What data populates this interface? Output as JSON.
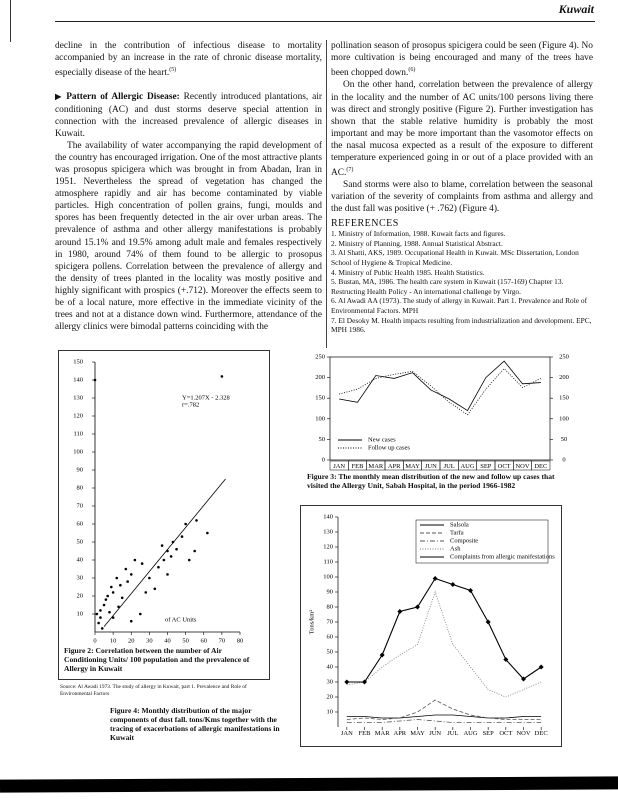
{
  "header": {
    "section": "Kuwait"
  },
  "left_column": {
    "paragraphs": [
      {
        "text": "decline in the contribution of infectious disease to mortality accompanied by an increase in the rate of chronic disease mortality, especially disease of the heart.",
        "note": "(5)"
      },
      {
        "heading": "Pattern of Allergic Disease:",
        "text": "Recently introduced plantations, air conditioning (AC) and dust storms deserve special attention in connection with the increased prevalence of allergic diseases in Kuwait."
      },
      {
        "text": "The availability of water accompanying the rapid development of the country has encouraged irrigation. One of the most attractive plants was prosopus spicigera which was brought in from Abadan, Iran in 1951. Nevertheless the spread of vegetation has changed the atmosphere rapidly and air has become contaminated by viable particles. High concentration of pollen grains, fungi, moulds and spores has been frequently detected in the air over urban areas. The prevalence of asthma and other allergy manifestations is probably around 15.1% and 19.5% among adult male and females respectively in 1980, around 74% of them found to be allergic to prosopus spicigera pollens. Correlation between the prevalence of allergy and the density of trees planted in the locality was mostly positive and highly significant with prospics (+.712). Moreover the effects seem to be of a local nature, more effective in the immediate vicinity of the trees and not at a distance down wind. Furthermore, attendance of the allergy clinics were bimodal patterns coinciding with the"
      }
    ]
  },
  "right_column": {
    "paragraphs": [
      {
        "text": "pollination season of prosopus spicigera could be seen (Figure 4). No more cultivation is being encouraged and many of the trees have been chopped down.",
        "note": "(6)"
      },
      {
        "text": "On the other hand, correlation between the prevalence of allergy in the locality and the number of AC units/100 persons living there was direct and strongly positive (Figure 2). Further investigation has shown that the stable relative humidity is probably the most important and may be more important than the vasomotor effects on the nasal mucosa expected as a result of the exposure to different temperature experienced going in or out of a place provided with an AC.",
        "note": "(7)"
      },
      {
        "text": "Sand storms were also to blame, correlation between the seasonal variation of the severity of complaints from asthma and allergy and the dust fall was positive (+ .762) (Figure 4)."
      }
    ],
    "references": {
      "title": "REFERENCES",
      "items": [
        "1. Ministry of Information, 1988. Kuwait facts and figures.",
        "2. Ministry of Planning, 1988. Annual Statistical Abstract.",
        "3. Al Shatti, AKS, 1989. Occupational Health in Kuwait. MSc Dissertation, London School of Hygiene & Tropical Medicine.",
        "4. Ministry of Public Health 1985. Health Statistics.",
        "5. Bustan, MA, 1986. The health care system in Kuwait (157-169) Chapter 13. Restructing Health Policy - An international challenge by Virgo.",
        "6. Al Awadi AA (1973). The study of allergy in Kuwait. Part 1. Prevalence and Role of Environmental Factors. MPH",
        "7. El Desoky M. Health impacts resulting from industrialization and development. EPC, MPH 1986."
      ]
    }
  },
  "chart_data": [
    {
      "type": "scatter",
      "title": "Figure 2: Correlation between the number of Air Conditioning Units/ 100 population and the prevalence of Allergy in Kuwait",
      "source": "Source: Al Awadi 1973. The study of allergy in Kuwait, part 1. Prevalence and Role of Environmental Factors",
      "annotations": [
        "Y=1.207X - 2.328",
        "r=.782"
      ],
      "xlabel": "of AC Units",
      "color": "#000000",
      "x": [
        0,
        1,
        2,
        3,
        3,
        4,
        5,
        6,
        7,
        8,
        9,
        10,
        10,
        12,
        13,
        14,
        15,
        17,
        18,
        20,
        20,
        22,
        25,
        26,
        28,
        30,
        33,
        35,
        37,
        38,
        40,
        40,
        42,
        43,
        45,
        48,
        50,
        52,
        55,
        56,
        62,
        70
      ],
      "y": [
        140,
        10,
        5,
        12,
        8,
        2,
        15,
        18,
        20,
        11,
        25,
        22,
        8,
        30,
        14,
        26,
        19,
        35,
        28,
        32,
        6,
        40,
        10,
        38,
        22,
        30,
        24,
        36,
        48,
        40,
        32,
        45,
        42,
        50,
        46,
        53,
        60,
        40,
        45,
        62,
        55,
        142
      ],
      "fit": {
        "x": [
          5,
          72
        ],
        "y": [
          3,
          85
        ]
      },
      "xlim": [
        0,
        80
      ],
      "ylim": [
        0,
        150
      ],
      "xticks": [
        0,
        10,
        20,
        30,
        40,
        50,
        60,
        70,
        80
      ],
      "yticks": [
        10,
        20,
        30,
        40,
        50,
        60,
        70,
        80,
        90,
        100,
        110,
        120,
        130,
        140,
        150
      ]
    },
    {
      "type": "line",
      "title": "Figure 3: The monthly mean distribution of the new and follow up cases that visited the Allergy Unit, Sabah Hospital, in the period 1966-1982",
      "categories": [
        "JAN",
        "FEB",
        "MAR",
        "APR",
        "MAY",
        "JUN",
        "JUL",
        "AUG",
        "SEP",
        "OCT",
        "NOV",
        "DEC"
      ],
      "series": [
        {
          "name": "New cases",
          "color": "#000000",
          "style": "solid",
          "values": [
            148,
            140,
            205,
            198,
            212,
            170,
            148,
            120,
            200,
            240,
            185,
            188
          ]
        },
        {
          "name": "Follow up cases",
          "color": "#000000",
          "style": "dotted",
          "values": [
            160,
            172,
            198,
            208,
            215,
            180,
            140,
            110,
            172,
            222,
            176,
            198
          ]
        }
      ],
      "ylim": [
        0,
        250
      ],
      "yticks": [
        0,
        50,
        100,
        150,
        200,
        250
      ],
      "y2lim": [
        0,
        250
      ],
      "y2ticks": [
        0,
        50,
        100,
        150,
        200,
        250
      ],
      "legend": "lower left"
    },
    {
      "type": "line",
      "title": "Figure 4: Monthly distribution of the major components of dust fall. tons/Kms together with the tracing of exacerbations of allergic manifestations in Kuwait",
      "ylabel": "Tons/km²",
      "categories": [
        "JAN",
        "FEB",
        "MAR",
        "APR",
        "MAY",
        "JUN",
        "JUL",
        "AUG",
        "SEP",
        "OCT",
        "NOV",
        "DEC"
      ],
      "series": [
        {
          "name": "Salsola",
          "color": "#000000",
          "style": "solid",
          "values": [
            7,
            7,
            6,
            6,
            7,
            8,
            8,
            7,
            6,
            6,
            7,
            7
          ]
        },
        {
          "name": "Tarfa",
          "color": "#555555",
          "style": "dashed",
          "values": [
            5,
            6,
            5,
            6,
            10,
            18,
            12,
            8,
            6,
            5,
            5,
            5
          ]
        },
        {
          "name": "Composite",
          "color": "#555555",
          "style": "dashdot",
          "values": [
            3,
            3,
            3,
            4,
            5,
            4,
            3,
            3,
            3,
            3,
            3,
            3
          ]
        },
        {
          "name": "Ash",
          "color": "#777777",
          "style": "dotted",
          "values": [
            28,
            30,
            40,
            48,
            55,
            90,
            55,
            40,
            25,
            20,
            25,
            30
          ]
        },
        {
          "name": "Complaints from allergic manifestations",
          "color": "#000000",
          "style": "solid",
          "marker": "diamond",
          "values": [
            30,
            30,
            48,
            77,
            80,
            99,
            95,
            91,
            70,
            45,
            32,
            40
          ]
        }
      ],
      "ylim": [
        0,
        140
      ],
      "yticks": [
        10,
        20,
        30,
        40,
        50,
        60,
        70,
        80,
        90,
        100,
        110,
        120,
        130,
        140
      ],
      "legend": "upper right"
    }
  ]
}
